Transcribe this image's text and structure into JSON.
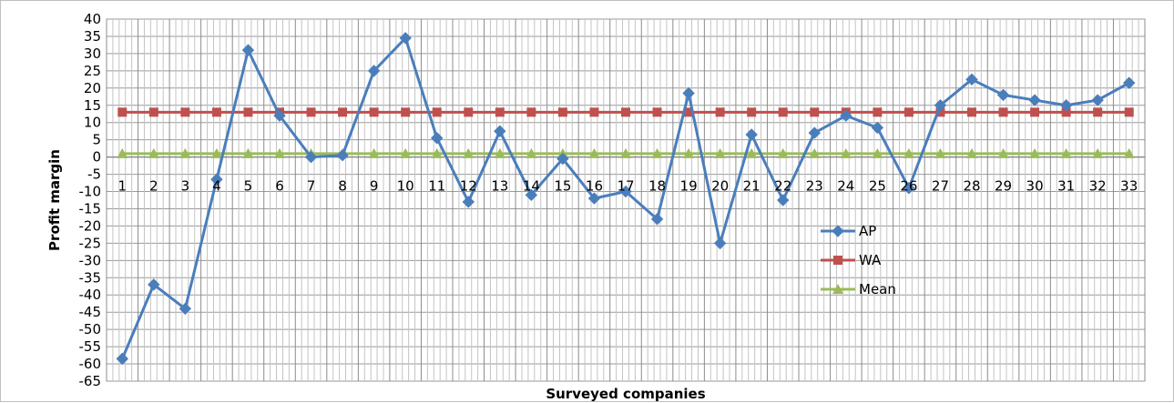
{
  "chart_data": {
    "type": "line",
    "xlabel": "Surveyed companies",
    "ylabel": "Profit margin",
    "ylim": [
      -65,
      40
    ],
    "ytick_step": 5,
    "categories": [
      "1",
      "2",
      "3",
      "4",
      "5",
      "6",
      "7",
      "8",
      "9",
      "10",
      "11",
      "12",
      "13",
      "14",
      "15",
      "16",
      "17",
      "18",
      "19",
      "20",
      "21",
      "22",
      "23",
      "24",
      "25",
      "26",
      "27",
      "28",
      "29",
      "30",
      "31",
      "32",
      "33"
    ],
    "grid": true,
    "legend_position": "center-right",
    "series": [
      {
        "name": "AP",
        "color": "#4a7ebb",
        "marker": "diamond",
        "values": [
          -58.5,
          -37,
          -44,
          -6.5,
          31,
          12,
          0,
          0.5,
          25,
          34.5,
          5.5,
          -13,
          7.5,
          -11,
          -0.5,
          -12,
          -10,
          -18,
          18.5,
          -25,
          6.5,
          -12.5,
          7,
          12,
          8.5,
          -9,
          15,
          22.5,
          18,
          16.5,
          15,
          16.5,
          21.5
        ]
      },
      {
        "name": "WA",
        "color": "#c0504d",
        "marker": "square",
        "values": [
          13,
          13,
          13,
          13,
          13,
          13,
          13,
          13,
          13,
          13,
          13,
          13,
          13,
          13,
          13,
          13,
          13,
          13,
          13,
          13,
          13,
          13,
          13,
          13,
          13,
          13,
          13,
          13,
          13,
          13,
          13,
          13,
          13
        ]
      },
      {
        "name": "Mean",
        "color": "#9bbb59",
        "marker": "triangle",
        "values": [
          1,
          1,
          1,
          1,
          1,
          1,
          1,
          1,
          1,
          1,
          1,
          1,
          1,
          1,
          1,
          1,
          1,
          1,
          1,
          1,
          1,
          1,
          1,
          1,
          1,
          1,
          1,
          1,
          1,
          1,
          1,
          1,
          1
        ]
      }
    ]
  }
}
